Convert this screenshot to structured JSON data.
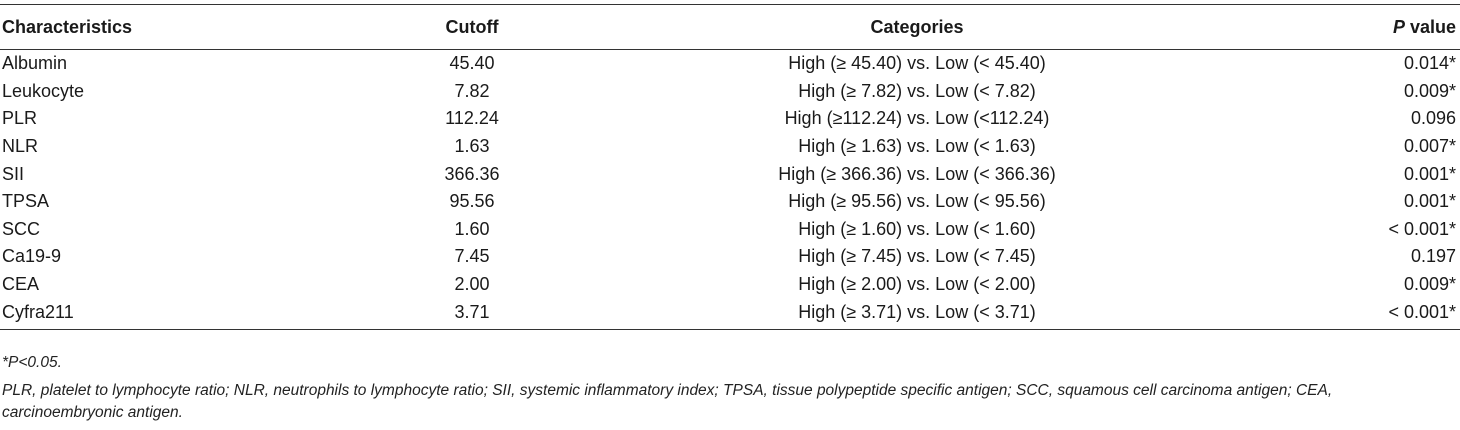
{
  "table": {
    "headers": {
      "characteristics": "Characteristics",
      "cutoff": "Cutoff",
      "categories": "Categories",
      "p_italic": "P",
      "p_rest": " value"
    },
    "rows": [
      {
        "name": "Albumin",
        "cutoff": "45.40",
        "categories": "High (≥ 45.40) vs. Low (< 45.40)",
        "p": "0.014*"
      },
      {
        "name": "Leukocyte",
        "cutoff": "7.82",
        "categories": "High (≥ 7.82) vs. Low (< 7.82)",
        "p": "0.009*"
      },
      {
        "name": "PLR",
        "cutoff": "112.24",
        "categories": "High (≥112.24) vs. Low (<112.24)",
        "p": "0.096"
      },
      {
        "name": "NLR",
        "cutoff": "1.63",
        "categories": "High (≥ 1.63) vs. Low (< 1.63)",
        "p": "0.007*"
      },
      {
        "name": "SII",
        "cutoff": "366.36",
        "categories": "High (≥ 366.36) vs. Low (< 366.36)",
        "p": "0.001*"
      },
      {
        "name": "TPSA",
        "cutoff": "95.56",
        "categories": "High (≥ 95.56) vs. Low (< 95.56)",
        "p": "0.001*"
      },
      {
        "name": "SCC",
        "cutoff": "1.60",
        "categories": "High (≥ 1.60) vs. Low (< 1.60)",
        "p": "< 0.001*"
      },
      {
        "name": "Ca19-9",
        "cutoff": "7.45",
        "categories": "High (≥ 7.45) vs. Low (< 7.45)",
        "p": "0.197"
      },
      {
        "name": "CEA",
        "cutoff": "2.00",
        "categories": "High (≥ 2.00) vs. Low (< 2.00)",
        "p": "0.009*"
      },
      {
        "name": "Cyfra211",
        "cutoff": "3.71",
        "categories": "High (≥ 3.71) vs. Low (< 3.71)",
        "p": "< 0.001*"
      }
    ]
  },
  "footnotes": {
    "significance": "*P<0.05.",
    "abbreviations": "PLR, platelet to lymphocyte ratio; NLR, neutrophils to lymphocyte ratio; SII, systemic inflammatory index; TPSA, tissue polypeptide specific antigen; SCC, squamous cell carcinoma antigen; CEA, carcinoembryonic antigen."
  }
}
